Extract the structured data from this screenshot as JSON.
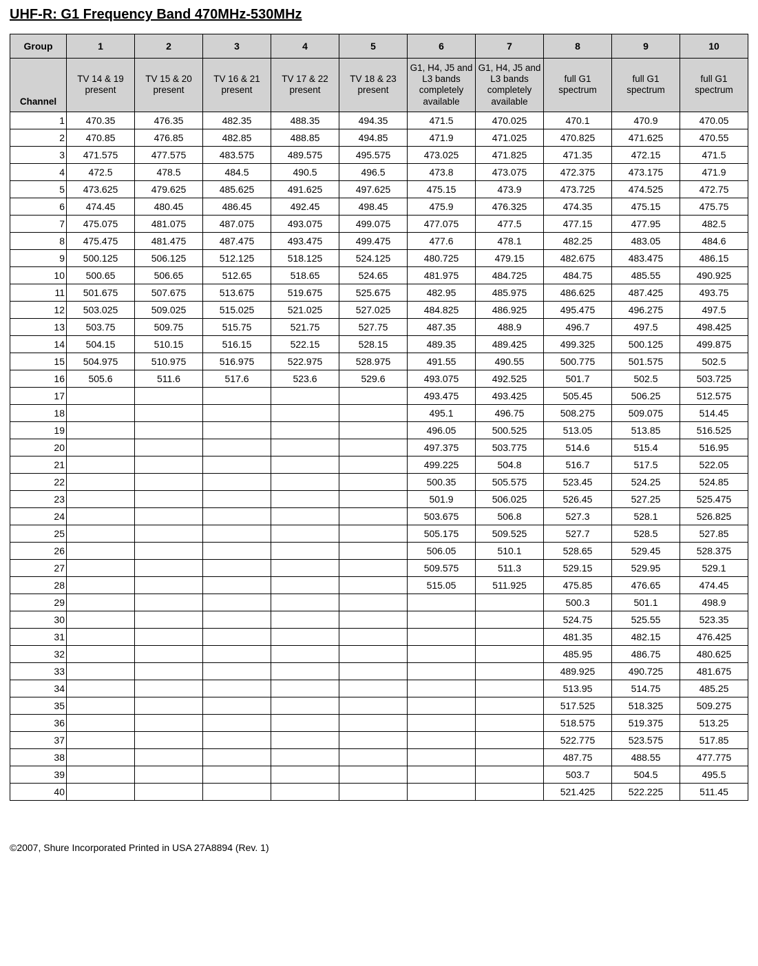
{
  "title": "UHF-R: G1 Frequency Band 470MHz-530MHz",
  "footer": "©2007, Shure Incorporated Printed in USA 27A8894 (Rev. 1)",
  "header_row1": [
    "Group",
    "1",
    "2",
    "3",
    "4",
    "5",
    "6",
    "7",
    "8",
    "9",
    "10"
  ],
  "header_row2": [
    "Channel",
    "TV 14 & 19 present",
    "TV 15 & 20 present",
    "TV 16 & 21 present",
    "TV 17 & 22 present",
    "TV 18 & 23 present",
    "G1, H4, J5 and L3 bands completely available",
    "G1, H4, J5 and L3 bands completely available",
    "full G1 spectrum",
    "full G1 spectrum",
    "full G1 spectrum"
  ],
  "rows": [
    [
      "1",
      "470.35",
      "476.35",
      "482.35",
      "488.35",
      "494.35",
      "471.5",
      "470.025",
      "470.1",
      "470.9",
      "470.05"
    ],
    [
      "2",
      "470.85",
      "476.85",
      "482.85",
      "488.85",
      "494.85",
      "471.9",
      "471.025",
      "470.825",
      "471.625",
      "470.55"
    ],
    [
      "3",
      "471.575",
      "477.575",
      "483.575",
      "489.575",
      "495.575",
      "473.025",
      "471.825",
      "471.35",
      "472.15",
      "471.5"
    ],
    [
      "4",
      "472.5",
      "478.5",
      "484.5",
      "490.5",
      "496.5",
      "473.8",
      "473.075",
      "472.375",
      "473.175",
      "471.9"
    ],
    [
      "5",
      "473.625",
      "479.625",
      "485.625",
      "491.625",
      "497.625",
      "475.15",
      "473.9",
      "473.725",
      "474.525",
      "472.75"
    ],
    [
      "6",
      "474.45",
      "480.45",
      "486.45",
      "492.45",
      "498.45",
      "475.9",
      "476.325",
      "474.35",
      "475.15",
      "475.75"
    ],
    [
      "7",
      "475.075",
      "481.075",
      "487.075",
      "493.075",
      "499.075",
      "477.075",
      "477.5",
      "477.15",
      "477.95",
      "482.5"
    ],
    [
      "8",
      "475.475",
      "481.475",
      "487.475",
      "493.475",
      "499.475",
      "477.6",
      "478.1",
      "482.25",
      "483.05",
      "484.6"
    ],
    [
      "9",
      "500.125",
      "506.125",
      "512.125",
      "518.125",
      "524.125",
      "480.725",
      "479.15",
      "482.675",
      "483.475",
      "486.15"
    ],
    [
      "10",
      "500.65",
      "506.65",
      "512.65",
      "518.65",
      "524.65",
      "481.975",
      "484.725",
      "484.75",
      "485.55",
      "490.925"
    ],
    [
      "11",
      "501.675",
      "507.675",
      "513.675",
      "519.675",
      "525.675",
      "482.95",
      "485.975",
      "486.625",
      "487.425",
      "493.75"
    ],
    [
      "12",
      "503.025",
      "509.025",
      "515.025",
      "521.025",
      "527.025",
      "484.825",
      "486.925",
      "495.475",
      "496.275",
      "497.5"
    ],
    [
      "13",
      "503.75",
      "509.75",
      "515.75",
      "521.75",
      "527.75",
      "487.35",
      "488.9",
      "496.7",
      "497.5",
      "498.425"
    ],
    [
      "14",
      "504.15",
      "510.15",
      "516.15",
      "522.15",
      "528.15",
      "489.35",
      "489.425",
      "499.325",
      "500.125",
      "499.875"
    ],
    [
      "15",
      "504.975",
      "510.975",
      "516.975",
      "522.975",
      "528.975",
      "491.55",
      "490.55",
      "500.775",
      "501.575",
      "502.5"
    ],
    [
      "16",
      "505.6",
      "511.6",
      "517.6",
      "523.6",
      "529.6",
      "493.075",
      "492.525",
      "501.7",
      "502.5",
      "503.725"
    ],
    [
      "17",
      "",
      "",
      "",
      "",
      "",
      "493.475",
      "493.425",
      "505.45",
      "506.25",
      "512.575"
    ],
    [
      "18",
      "",
      "",
      "",
      "",
      "",
      "495.1",
      "496.75",
      "508.275",
      "509.075",
      "514.45"
    ],
    [
      "19",
      "",
      "",
      "",
      "",
      "",
      "496.05",
      "500.525",
      "513.05",
      "513.85",
      "516.525"
    ],
    [
      "20",
      "",
      "",
      "",
      "",
      "",
      "497.375",
      "503.775",
      "514.6",
      "515.4",
      "516.95"
    ],
    [
      "21",
      "",
      "",
      "",
      "",
      "",
      "499.225",
      "504.8",
      "516.7",
      "517.5",
      "522.05"
    ],
    [
      "22",
      "",
      "",
      "",
      "",
      "",
      "500.35",
      "505.575",
      "523.45",
      "524.25",
      "524.85"
    ],
    [
      "23",
      "",
      "",
      "",
      "",
      "",
      "501.9",
      "506.025",
      "526.45",
      "527.25",
      "525.475"
    ],
    [
      "24",
      "",
      "",
      "",
      "",
      "",
      "503.675",
      "506.8",
      "527.3",
      "528.1",
      "526.825"
    ],
    [
      "25",
      "",
      "",
      "",
      "",
      "",
      "505.175",
      "509.525",
      "527.7",
      "528.5",
      "527.85"
    ],
    [
      "26",
      "",
      "",
      "",
      "",
      "",
      "506.05",
      "510.1",
      "528.65",
      "529.45",
      "528.375"
    ],
    [
      "27",
      "",
      "",
      "",
      "",
      "",
      "509.575",
      "511.3",
      "529.15",
      "529.95",
      "529.1"
    ],
    [
      "28",
      "",
      "",
      "",
      "",
      "",
      "515.05",
      "511.925",
      "475.85",
      "476.65",
      "474.45"
    ],
    [
      "29",
      "",
      "",
      "",
      "",
      "",
      "",
      "",
      "500.3",
      "501.1",
      "498.9"
    ],
    [
      "30",
      "",
      "",
      "",
      "",
      "",
      "",
      "",
      "524.75",
      "525.55",
      "523.35"
    ],
    [
      "31",
      "",
      "",
      "",
      "",
      "",
      "",
      "",
      "481.35",
      "482.15",
      "476.425"
    ],
    [
      "32",
      "",
      "",
      "",
      "",
      "",
      "",
      "",
      "485.95",
      "486.75",
      "480.625"
    ],
    [
      "33",
      "",
      "",
      "",
      "",
      "",
      "",
      "",
      "489.925",
      "490.725",
      "481.675"
    ],
    [
      "34",
      "",
      "",
      "",
      "",
      "",
      "",
      "",
      "513.95",
      "514.75",
      "485.25"
    ],
    [
      "35",
      "",
      "",
      "",
      "",
      "",
      "",
      "",
      "517.525",
      "518.325",
      "509.275"
    ],
    [
      "36",
      "",
      "",
      "",
      "",
      "",
      "",
      "",
      "518.575",
      "519.375",
      "513.25"
    ],
    [
      "37",
      "",
      "",
      "",
      "",
      "",
      "",
      "",
      "522.775",
      "523.575",
      "517.85"
    ],
    [
      "38",
      "",
      "",
      "",
      "",
      "",
      "",
      "",
      "487.75",
      "488.55",
      "477.775"
    ],
    [
      "39",
      "",
      "",
      "",
      "",
      "",
      "",
      "",
      "503.7",
      "504.5",
      "495.5"
    ],
    [
      "40",
      "",
      "",
      "",
      "",
      "",
      "",
      "",
      "521.425",
      "522.225",
      "511.45"
    ]
  ]
}
